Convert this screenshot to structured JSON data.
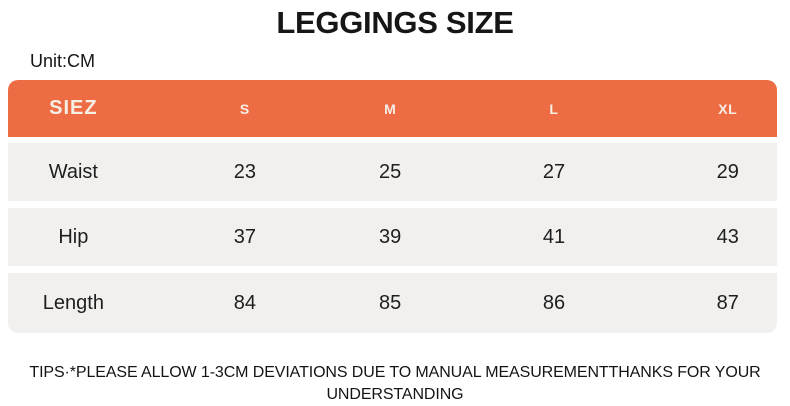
{
  "chart_data": {
    "type": "table",
    "title": "LEGGINGS SIZE",
    "unit_label": "Unit:CM",
    "header": {
      "corner_label": "SIEZ",
      "size_columns": [
        "S",
        "M",
        "L",
        "XL"
      ]
    },
    "rows": [
      {
        "label": "Waist",
        "values": [
          23,
          25,
          27,
          29
        ]
      },
      {
        "label": "Hip",
        "values": [
          37,
          39,
          41,
          43
        ]
      },
      {
        "label": "Length",
        "values": [
          84,
          85,
          86,
          87
        ]
      }
    ],
    "note": "TIPS·*PLEASE ALLOW 1-3CM DEVIATIONS DUE TO MANUAL MEASUREMENTTHANKS FOR YOUR UNDERSTANDING",
    "layout_hints": {
      "legend_position": "none",
      "grid": "off"
    }
  },
  "colors": {
    "accent_orange": "#ED6C43",
    "header_text": "#F6EFE6",
    "row_background": "#F1F0EE",
    "body_text": "#1E1E1E",
    "page_background": "#FFFFFF"
  }
}
